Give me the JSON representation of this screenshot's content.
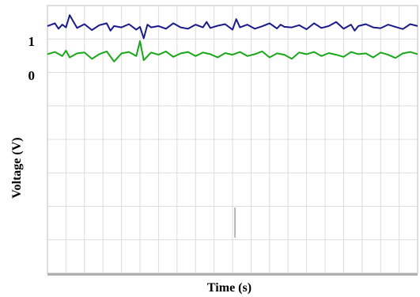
{
  "chart_data": {
    "type": "line",
    "xlabel": "Time (s)",
    "ylabel": "Voltage (V)",
    "y_tick_labels": [
      "1",
      "0"
    ],
    "ylim": [
      -8,
      1.8
    ],
    "xlim": [
      0,
      100
    ],
    "grid": true,
    "series": [
      {
        "color": "#1a1a8c",
        "baseline": 1,
        "x": [
          0,
          2,
          3,
          4,
          5,
          6,
          8,
          10,
          12,
          14,
          16,
          17,
          18,
          20,
          22,
          24,
          25,
          26,
          27,
          28,
          30,
          32,
          34,
          36,
          38,
          40,
          42,
          43,
          44,
          46,
          48,
          50,
          51,
          52,
          54,
          56,
          58,
          60,
          62,
          63,
          64,
          66,
          68,
          70,
          72,
          74,
          76,
          78,
          80,
          82,
          83,
          84,
          86,
          88,
          90,
          92,
          94,
          96,
          98,
          100
        ],
        "values": [
          1.05,
          1.15,
          0.95,
          1.1,
          1.0,
          1.45,
          0.98,
          1.12,
          0.9,
          1.08,
          1.15,
          0.88,
          1.05,
          1.0,
          1.12,
          0.92,
          1.02,
          0.6,
          1.1,
          1.0,
          1.05,
          0.95,
          1.15,
          1.0,
          0.95,
          1.1,
          1.0,
          1.2,
          0.98,
          1.06,
          1.12,
          0.92,
          1.3,
          1.0,
          1.1,
          0.95,
          1.04,
          1.15,
          0.96,
          1.1,
          1.02,
          1.0,
          1.08,
          0.93,
          1.15,
          0.98,
          1.05,
          1.2,
          0.95,
          1.1,
          0.88,
          1.05,
          1.12,
          1.0,
          0.97,
          1.1,
          1.02,
          0.94,
          1.12,
          1.05
        ]
      },
      {
        "color": "#1aa81a",
        "baseline": 0,
        "x": [
          0,
          2,
          4,
          5,
          6,
          8,
          10,
          12,
          14,
          16,
          18,
          20,
          22,
          24,
          25,
          26,
          28,
          30,
          32,
          34,
          36,
          38,
          40,
          42,
          44,
          46,
          48,
          50,
          52,
          54,
          56,
          58,
          60,
          62,
          64,
          66,
          68,
          70,
          72,
          74,
          76,
          78,
          80,
          82,
          84,
          86,
          88,
          90,
          92,
          94,
          96,
          98,
          100
        ],
        "values": [
          0.02,
          0.1,
          -0.05,
          0.15,
          -0.1,
          0.05,
          0.08,
          -0.15,
          0.02,
          0.12,
          -0.25,
          0.05,
          0.1,
          -0.05,
          0.5,
          -0.2,
          0.08,
          0.0,
          0.12,
          -0.08,
          0.05,
          0.1,
          -0.05,
          0.08,
          0.02,
          -0.1,
          0.06,
          0.0,
          0.1,
          -0.05,
          0.02,
          0.12,
          -0.1,
          0.05,
          0.0,
          -0.15,
          0.08,
          0.02,
          0.1,
          -0.05,
          0.06,
          0.0,
          -0.08,
          0.1,
          0.02,
          0.05,
          -0.1,
          0.08,
          0.0,
          -0.12,
          0.05,
          0.1,
          0.02
        ]
      }
    ]
  }
}
